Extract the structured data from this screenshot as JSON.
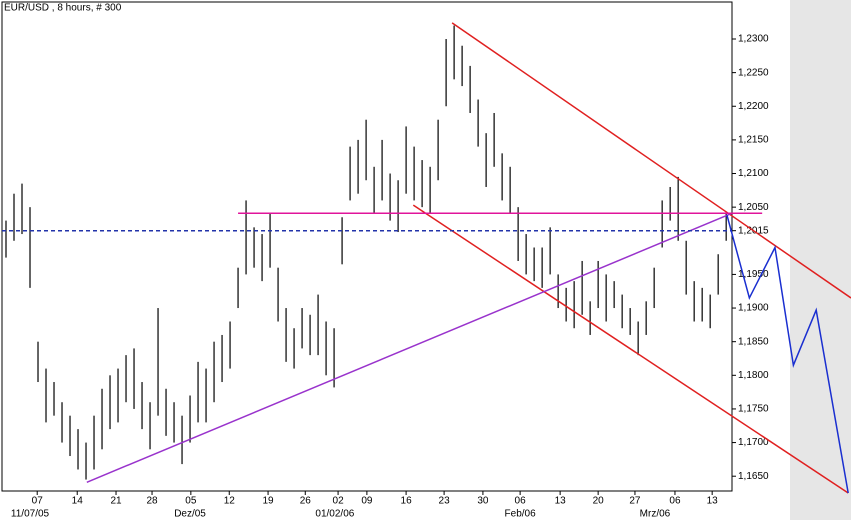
{
  "chart_data": {
    "type": "hilo",
    "title": "EUR/USD , 8 hours, # 300",
    "bar_color": "#000000",
    "x": [
      0,
      1,
      2,
      3,
      4,
      5,
      6,
      7,
      8,
      9,
      10,
      11,
      12,
      13,
      14,
      15,
      16,
      17,
      18,
      19,
      20,
      21,
      22,
      23,
      24,
      25,
      26,
      27,
      28,
      29,
      30,
      31,
      32,
      33,
      34,
      35,
      36,
      37,
      38,
      39,
      40,
      41,
      42,
      43,
      44,
      45,
      46,
      47,
      48,
      49,
      50,
      51,
      52,
      53,
      54,
      55,
      56,
      57,
      58,
      59,
      60,
      61,
      62,
      63,
      64,
      65,
      66,
      67,
      68,
      69,
      70,
      71,
      72,
      73,
      74,
      75,
      76,
      77,
      78,
      79,
      80,
      81,
      82,
      83,
      84,
      85,
      86,
      87,
      88,
      89,
      90
    ],
    "high": [
      1.203,
      1.207,
      1.2085,
      1.205,
      1.185,
      1.181,
      1.179,
      1.176,
      1.174,
      1.172,
      1.17,
      1.174,
      1.178,
      1.18,
      1.181,
      1.183,
      1.184,
      1.179,
      1.176,
      1.19,
      1.178,
      1.176,
      1.174,
      1.177,
      1.182,
      1.181,
      1.185,
      1.186,
      1.188,
      1.196,
      1.206,
      1.202,
      1.201,
      1.204,
      1.196,
      1.19,
      1.187,
      1.19,
      1.189,
      1.192,
      1.188,
      1.187,
      1.2035,
      1.214,
      1.215,
      1.218,
      1.211,
      1.215,
      1.21,
      1.209,
      1.217,
      1.214,
      1.212,
      1.211,
      1.218,
      1.23,
      1.232,
      1.229,
      1.226,
      1.221,
      1.216,
      1.219,
      1.213,
      1.211,
      1.205,
      1.201,
      1.199,
      1.199,
      1.202,
      1.195,
      1.193,
      1.194,
      1.197,
      1.191,
      1.197,
      1.195,
      1.194,
      1.192,
      1.19,
      1.188,
      1.191,
      1.196,
      1.206,
      1.208,
      1.2095,
      1.2,
      1.194,
      1.193,
      1.192,
      1.198,
      1.204
    ],
    "low": [
      1.1975,
      1.2,
      1.201,
      1.193,
      1.179,
      1.173,
      1.174,
      1.17,
      1.168,
      1.166,
      1.1645,
      1.166,
      1.169,
      1.172,
      1.173,
      1.176,
      1.175,
      1.172,
      1.169,
      1.174,
      1.171,
      1.17,
      1.1668,
      1.17,
      1.173,
      1.173,
      1.176,
      1.179,
      1.181,
      1.19,
      1.195,
      1.196,
      1.194,
      1.196,
      1.188,
      1.182,
      1.181,
      1.184,
      1.183,
      1.183,
      1.18,
      1.1782,
      1.1965,
      1.206,
      1.207,
      1.209,
      1.204,
      1.206,
      1.203,
      1.2013,
      1.207,
      1.206,
      1.205,
      1.204,
      1.209,
      1.22,
      1.224,
      1.223,
      1.219,
      1.214,
      1.208,
      1.211,
      1.206,
      1.204,
      1.197,
      1.195,
      1.194,
      1.193,
      1.195,
      1.19,
      1.188,
      1.187,
      1.189,
      1.186,
      1.19,
      1.188,
      1.19,
      1.187,
      1.186,
      1.183,
      1.186,
      1.19,
      1.199,
      1.203,
      1.2,
      1.192,
      1.188,
      1.188,
      1.187,
      1.192,
      1.2
    ],
    "lines": [
      {
        "color": "#e02020",
        "dashed": false,
        "x": [
          55.75,
          105.6
        ],
        "y": [
          1.2324,
          1.1915
        ]
      },
      {
        "color": "#e02020",
        "dashed": false,
        "x": [
          50.9,
          105.25
        ],
        "y": [
          1.2053,
          1.1625
        ]
      },
      {
        "color": "#9933cc",
        "dashed": false,
        "x": [
          10.1,
          90.75
        ],
        "y": [
          1.1641,
          1.2041
        ]
      },
      {
        "color": "#e0149b",
        "dashed": false,
        "x": [
          29,
          94.5
        ],
        "y": [
          1.2041,
          1.2041
        ]
      },
      {
        "color": "#2233aa",
        "dashed": true,
        "x": [
          -0.5,
          90.75
        ],
        "y": [
          1.2015,
          1.2015
        ]
      },
      {
        "color": "#1a2fd0",
        "dashed": false,
        "x": [
          90.1,
          92.9,
          96.1,
          98.4,
          101.25,
          105.25
        ],
        "y": [
          1.2038,
          1.1915,
          1.199,
          1.1815,
          1.1897,
          1.1625
        ]
      }
    ],
    "xlim": [
      -0.5,
      105.6
    ],
    "ylim": [
      1.1628,
      1.2355
    ],
    "xticks": [
      {
        "value": 3.9,
        "label": "07"
      },
      {
        "value": 8.9,
        "label": "14"
      },
      {
        "value": 13.75,
        "label": "21"
      },
      {
        "value": 18.25,
        "label": "28"
      },
      {
        "value": 23.1,
        "label": "05"
      },
      {
        "value": 27.9,
        "label": "12"
      },
      {
        "value": 32.75,
        "label": "19"
      },
      {
        "value": 37.4,
        "label": "26"
      },
      {
        "value": 41.5,
        "label": "02"
      },
      {
        "value": 45.1,
        "label": "09"
      },
      {
        "value": 50,
        "label": "16"
      },
      {
        "value": 54.75,
        "label": "23"
      },
      {
        "value": 59.6,
        "label": "30"
      },
      {
        "value": 64.25,
        "label": "06"
      },
      {
        "value": 69.25,
        "label": "13"
      },
      {
        "value": 74,
        "label": "20"
      },
      {
        "value": 78.6,
        "label": "27"
      },
      {
        "value": 83.6,
        "label": "06"
      },
      {
        "value": 88.25,
        "label": "13"
      }
    ],
    "xticks_dates": [
      {
        "value": 3,
        "label": "11/07/05"
      },
      {
        "value": 23,
        "label": "Dez/05"
      },
      {
        "value": 41.1,
        "label": "01/02/06"
      },
      {
        "value": 64.25,
        "label": "Feb/06"
      },
      {
        "value": 81.1,
        "label": "Mrz/06"
      }
    ],
    "yticks": [
      {
        "value": 1.23,
        "label": "1,2300"
      },
      {
        "value": 1.225,
        "label": "1,2250"
      },
      {
        "value": 1.22,
        "label": "1,2200"
      },
      {
        "value": 1.215,
        "label": "1,2150"
      },
      {
        "value": 1.21,
        "label": "1,2100"
      },
      {
        "value": 1.205,
        "label": "1,2050"
      },
      {
        "value": 1.2015,
        "label": "1,2015"
      },
      {
        "value": 1.195,
        "label": "1,1950"
      },
      {
        "value": 1.19,
        "label": "1,1900"
      },
      {
        "value": 1.185,
        "label": "1,1850"
      },
      {
        "value": 1.18,
        "label": "1,1800"
      },
      {
        "value": 1.175,
        "label": "1,1750"
      },
      {
        "value": 1.17,
        "label": "1,1700"
      },
      {
        "value": 1.165,
        "label": "1,1650"
      }
    ]
  }
}
